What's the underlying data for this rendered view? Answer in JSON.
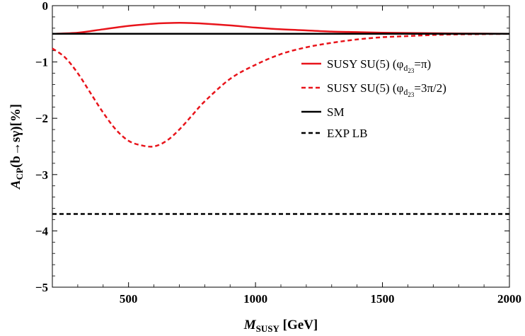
{
  "chart_data": {
    "type": "line",
    "title": "",
    "xlabel_main": "M",
    "xlabel_sub": "SUSY",
    "xlabel_unit": " [GeV]",
    "ylabel_main": "A",
    "ylabel_sub": "CP",
    "ylabel_rest": "(b→sγ)[%]",
    "xlim": [
      200,
      2000
    ],
    "ylim": [
      -5,
      0
    ],
    "xticks": [
      500,
      1000,
      1500,
      2000
    ],
    "xtick_labels": [
      "500",
      "1000",
      "1500",
      "2000"
    ],
    "yticks": [
      0,
      -1,
      -2,
      -3,
      -4,
      -5
    ],
    "ytick_labels": [
      "0",
      "−1",
      "−2",
      "−3",
      "−4",
      "−5"
    ],
    "legend_position": "upper-right",
    "series": [
      {
        "legend_main": "SUSY SU(5) (φ",
        "legend_sub": "d",
        "legend_subsub": "23",
        "legend_tail": "=π)",
        "color": "#e8141b",
        "dash": "solid",
        "x": [
          200,
          300,
          400,
          500,
          600,
          650,
          700,
          750,
          800,
          900,
          1000,
          1100,
          1200,
          1300,
          1400,
          1500,
          1600,
          1700,
          1800,
          1900,
          2000
        ],
        "y": [
          -0.5,
          -0.48,
          -0.42,
          -0.36,
          -0.32,
          -0.31,
          -0.305,
          -0.31,
          -0.32,
          -0.35,
          -0.39,
          -0.42,
          -0.44,
          -0.46,
          -0.47,
          -0.48,
          -0.485,
          -0.49,
          -0.495,
          -0.497,
          -0.5
        ]
      },
      {
        "legend_main": "SUSY SU(5) (φ",
        "legend_sub": "d",
        "legend_subsub": "23",
        "legend_tail": "=3π/2)",
        "color": "#e8141b",
        "dash": "dashed",
        "x": [
          200,
          250,
          300,
          350,
          400,
          450,
          500,
          550,
          600,
          650,
          700,
          750,
          800,
          900,
          1000,
          1100,
          1200,
          1300,
          1400,
          1500,
          1600,
          1700,
          1800,
          1900,
          2000
        ],
        "y": [
          -0.76,
          -0.92,
          -1.2,
          -1.55,
          -1.9,
          -2.2,
          -2.4,
          -2.48,
          -2.5,
          -2.4,
          -2.2,
          -1.95,
          -1.7,
          -1.3,
          -1.05,
          -0.86,
          -0.74,
          -0.66,
          -0.6,
          -0.56,
          -0.54,
          -0.52,
          -0.51,
          -0.505,
          -0.5
        ]
      },
      {
        "legend_main": "SM",
        "color": "#000000",
        "dash": "solid",
        "x": [
          200,
          2000
        ],
        "y": [
          -0.5,
          -0.5
        ]
      },
      {
        "legend_main": "EXP LB",
        "color": "#000000",
        "dash": "dashed",
        "x": [
          200,
          2000
        ],
        "y": [
          -3.7,
          -3.7
        ]
      }
    ]
  }
}
